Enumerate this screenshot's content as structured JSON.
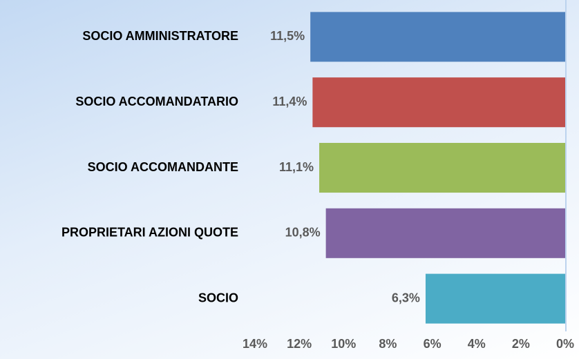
{
  "chart_data": {
    "type": "bar",
    "orientation": "horizontal",
    "x_reversed": true,
    "categories": [
      "SOCIO AMMINISTRATORE",
      "SOCIO ACCOMANDATARIO",
      "SOCIO ACCOMANDANTE",
      "PROPRIETARI AZIONI QUOTE",
      "SOCIO"
    ],
    "values": [
      11.5,
      11.4,
      11.1,
      10.8,
      6.3
    ],
    "value_labels": [
      "11,5%",
      "11,4%",
      "11,1%",
      "10,8%",
      "6,3%"
    ],
    "colors": [
      "#4f81bd",
      "#c0504d",
      "#9bbb59",
      "#8064a2",
      "#4bacc6"
    ],
    "xlim": [
      0,
      14
    ],
    "xticks": [
      {
        "value": 14,
        "label": "14%"
      },
      {
        "value": 12,
        "label": "12%"
      },
      {
        "value": 10,
        "label": "10%"
      },
      {
        "value": 8,
        "label": "8%"
      },
      {
        "value": 6,
        "label": "6%"
      },
      {
        "value": 4,
        "label": "4%"
      },
      {
        "value": 2,
        "label": "2%"
      },
      {
        "value": 0,
        "label": "0%"
      }
    ]
  }
}
